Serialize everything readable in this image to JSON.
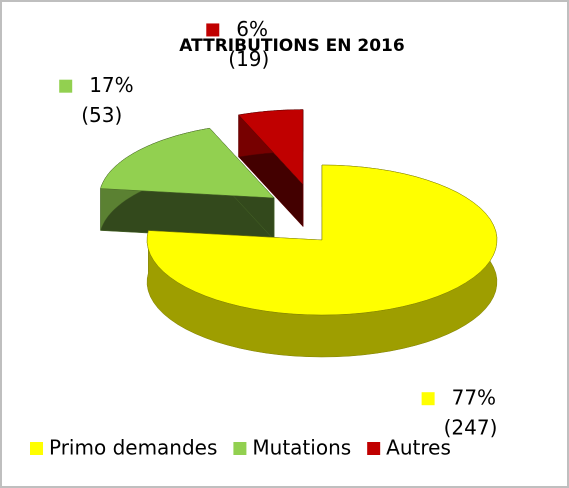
{
  "chart_data": {
    "type": "pie3d",
    "title": "ATTRIBUTIONS EN 2016",
    "categories": [
      "Primo demandes",
      "Mutations",
      "Autres"
    ],
    "values": [
      77,
      17,
      6
    ],
    "value_labels": [
      "77%",
      "17%",
      "6%"
    ],
    "counts": [
      247,
      53,
      19
    ],
    "count_labels": [
      "(247)",
      "(53)",
      "(19)"
    ],
    "colors": [
      "#ffff00",
      "#92d050",
      "#c00000"
    ],
    "legend": "bottom"
  }
}
